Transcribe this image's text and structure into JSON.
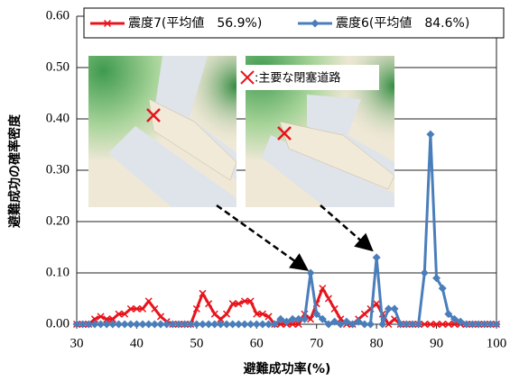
{
  "chart_data": {
    "type": "line",
    "xlabel": "避難成功率(%)",
    "ylabel": "避難成功の確率密度",
    "annotation": ":主要な閉塞道路",
    "x": [
      30,
      31,
      32,
      33,
      34,
      35,
      36,
      37,
      38,
      39,
      40,
      41,
      42,
      43,
      44,
      45,
      46,
      47,
      48,
      49,
      50,
      51,
      52,
      53,
      54,
      55,
      56,
      57,
      58,
      59,
      60,
      61,
      62,
      63,
      64,
      65,
      66,
      67,
      68,
      69,
      70,
      71,
      72,
      73,
      74,
      75,
      76,
      77,
      78,
      79,
      80,
      81,
      82,
      83,
      84,
      85,
      86,
      87,
      88,
      89,
      90,
      91,
      92,
      93,
      94,
      95,
      96,
      97,
      98,
      99,
      100
    ],
    "series": [
      {
        "name": "震度7(平均値　56.9%)",
        "color": "#e8141c",
        "marker": "x",
        "values": [
          0,
          0,
          0,
          0.01,
          0.015,
          0.01,
          0.01,
          0.02,
          0.02,
          0.03,
          0.03,
          0.03,
          0.045,
          0.03,
          0.015,
          0.005,
          0,
          0,
          0,
          0,
          0.03,
          0.06,
          0.04,
          0.02,
          0.01,
          0.02,
          0.04,
          0.04,
          0.045,
          0.045,
          0.02,
          0.02,
          0.015,
          0,
          0,
          0,
          0,
          0,
          0.02,
          0.01,
          0.04,
          0.07,
          0.05,
          0.03,
          0.01,
          0,
          0,
          0.01,
          0.02,
          0.03,
          0.04,
          0.02,
          0,
          0.01,
          0,
          0,
          0,
          0,
          0,
          0,
          0,
          0,
          0,
          0,
          0,
          0,
          0,
          0,
          0,
          0,
          0
        ]
      },
      {
        "name": "震度6(平均値　84.6%)",
        "color": "#4a7ebb",
        "marker": "diamond",
        "values": [
          0,
          0,
          0,
          0,
          0,
          0,
          0,
          0,
          0,
          0,
          0,
          0,
          0,
          0,
          0,
          0,
          0,
          0,
          0,
          0,
          0,
          0,
          0,
          0,
          0,
          0,
          0,
          0,
          0,
          0,
          0,
          0,
          0,
          0,
          0.01,
          0.005,
          0.01,
          0.01,
          0.01,
          0.1,
          0.02,
          0.01,
          0,
          0.005,
          0,
          0.005,
          0,
          0.005,
          0,
          0,
          0.13,
          0,
          0.03,
          0.03,
          0,
          0,
          0,
          0,
          0.1,
          0.37,
          0.09,
          0.07,
          0.02,
          0.01,
          0.005,
          0,
          0,
          0,
          0,
          0,
          0
        ]
      }
    ],
    "xlim": [
      30,
      100
    ],
    "xticks": [
      30,
      40,
      50,
      60,
      70,
      80,
      90,
      100
    ],
    "ylim": [
      0,
      0.6
    ],
    "yticks": [
      {
        "value": 0,
        "label": "0.00"
      },
      {
        "value": 0.1,
        "label": "0.10"
      },
      {
        "value": 0.2,
        "label": "0.20"
      },
      {
        "value": 0.3,
        "label": "0.30"
      },
      {
        "value": 0.4,
        "label": "0.40"
      },
      {
        "value": 0.5,
        "label": "0.50"
      },
      {
        "value": 0.6,
        "label": "0.60"
      }
    ],
    "grid": true
  }
}
